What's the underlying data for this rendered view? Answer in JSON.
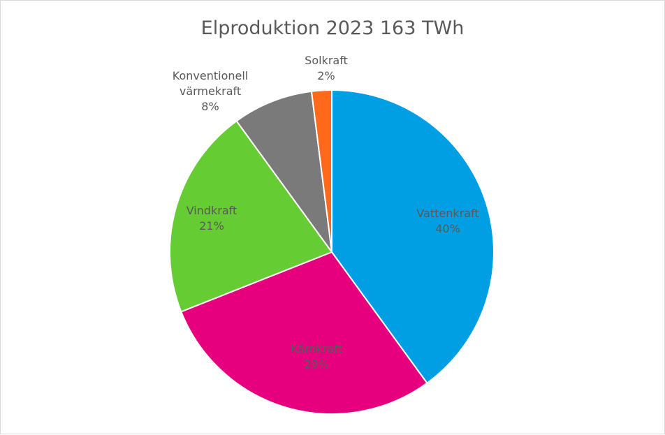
{
  "chart_data": {
    "type": "pie",
    "title": "Elproduktion 2023 163 TWh",
    "categories": [
      "Vattenkraft",
      "Kärnkraft",
      "Vindkraft",
      "Konventionell värmekraft",
      "Solkraft"
    ],
    "values": [
      40,
      29,
      21,
      8,
      2
    ],
    "unit": "%",
    "colors": [
      "#009fe3",
      "#e6007e",
      "#66cc33",
      "#7a7a7a",
      "#ff6a1a"
    ],
    "labels": [
      {
        "name": "Vattenkraft",
        "pct": "40%"
      },
      {
        "name": "Kärnkraft",
        "pct": "29%"
      },
      {
        "name": "Vindkraft",
        "pct": "21%"
      },
      {
        "name_line1": "Konventionell",
        "name_line2": "värmekraft",
        "pct": "8%"
      },
      {
        "name": "Solkraft",
        "pct": "2%"
      }
    ],
    "legend": "none (data labels)",
    "start_angle": "12 o'clock, clockwise"
  }
}
